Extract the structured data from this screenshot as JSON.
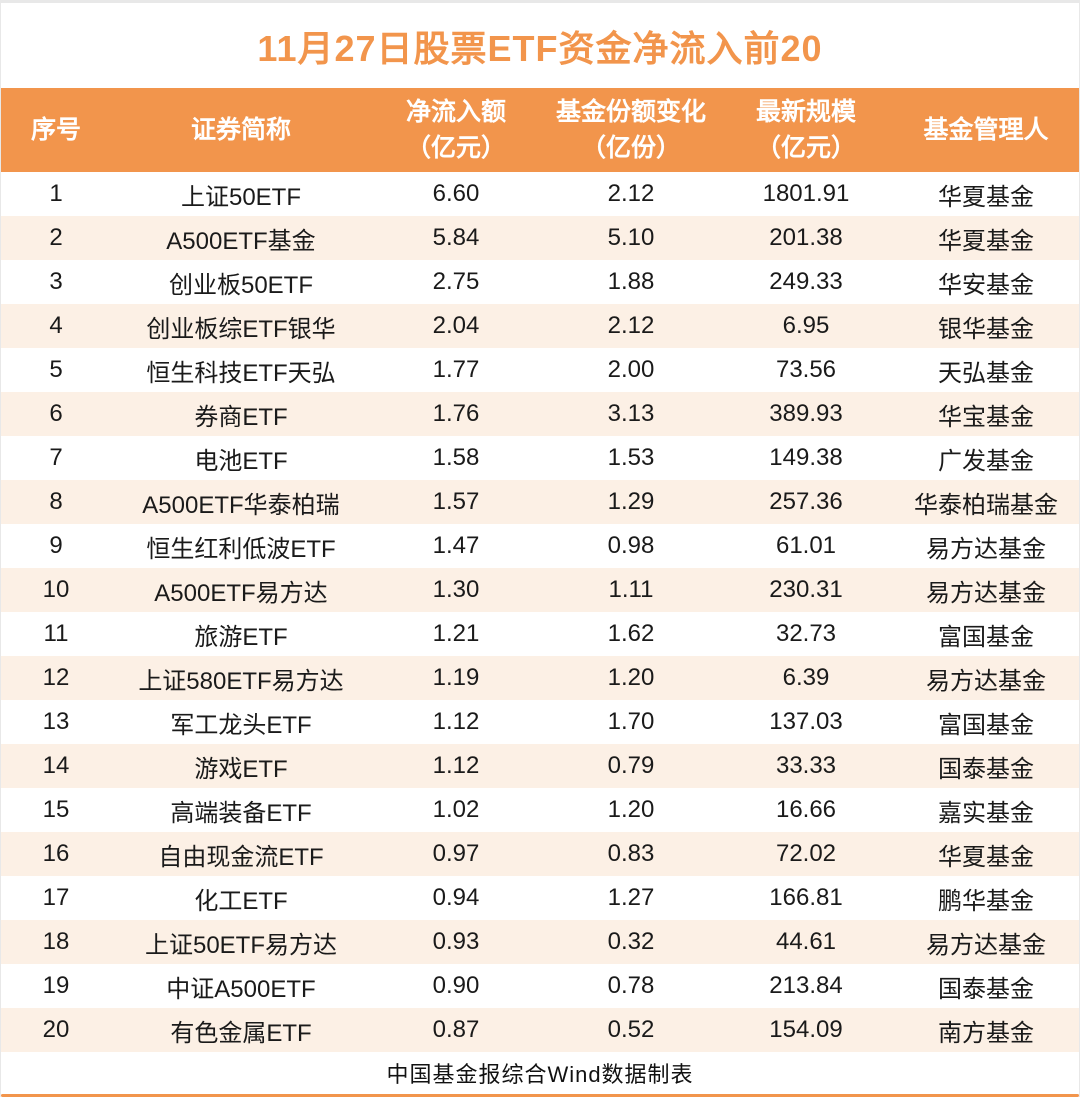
{
  "title": "11月27日股票ETF资金净流入前20",
  "footer_note": "中国基金报综合Wind数据制表",
  "colors": {
    "accent_orange": "#F2954C",
    "row_alt_peach": "#FCF0E5",
    "header_text": "#FFFFFF",
    "body_text": "#1A1A1A",
    "top_hairline": "#E8E8E8"
  },
  "chart_data": {
    "type": "table",
    "title": "11月27日股票ETF资金净流入前20",
    "columns": [
      {
        "label": "序号",
        "unit": ""
      },
      {
        "label": "证券简称",
        "unit": ""
      },
      {
        "label": "净流入额",
        "unit": "（亿元）"
      },
      {
        "label": "基金份额变化",
        "unit": "（亿份）"
      },
      {
        "label": "最新规模",
        "unit": "（亿元）"
      },
      {
        "label": "基金管理人",
        "unit": ""
      }
    ],
    "rows": [
      {
        "rank": "1",
        "name": "上证50ETF",
        "net_inflow": "6.60",
        "share_change": "2.12",
        "scale": "1801.91",
        "manager": "华夏基金"
      },
      {
        "rank": "2",
        "name": "A500ETF基金",
        "net_inflow": "5.84",
        "share_change": "5.10",
        "scale": "201.38",
        "manager": "华夏基金"
      },
      {
        "rank": "3",
        "name": "创业板50ETF",
        "net_inflow": "2.75",
        "share_change": "1.88",
        "scale": "249.33",
        "manager": "华安基金"
      },
      {
        "rank": "4",
        "name": "创业板综ETF银华",
        "net_inflow": "2.04",
        "share_change": "2.12",
        "scale": "6.95",
        "manager": "银华基金"
      },
      {
        "rank": "5",
        "name": "恒生科技ETF天弘",
        "net_inflow": "1.77",
        "share_change": "2.00",
        "scale": "73.56",
        "manager": "天弘基金"
      },
      {
        "rank": "6",
        "name": "券商ETF",
        "net_inflow": "1.76",
        "share_change": "3.13",
        "scale": "389.93",
        "manager": "华宝基金"
      },
      {
        "rank": "7",
        "name": "电池ETF",
        "net_inflow": "1.58",
        "share_change": "1.53",
        "scale": "149.38",
        "manager": "广发基金"
      },
      {
        "rank": "8",
        "name": "A500ETF华泰柏瑞",
        "net_inflow": "1.57",
        "share_change": "1.29",
        "scale": "257.36",
        "manager": "华泰柏瑞基金"
      },
      {
        "rank": "9",
        "name": "恒生红利低波ETF",
        "net_inflow": "1.47",
        "share_change": "0.98",
        "scale": "61.01",
        "manager": "易方达基金"
      },
      {
        "rank": "10",
        "name": "A500ETF易方达",
        "net_inflow": "1.30",
        "share_change": "1.11",
        "scale": "230.31",
        "manager": "易方达基金"
      },
      {
        "rank": "11",
        "name": "旅游ETF",
        "net_inflow": "1.21",
        "share_change": "1.62",
        "scale": "32.73",
        "manager": "富国基金"
      },
      {
        "rank": "12",
        "name": "上证580ETF易方达",
        "net_inflow": "1.19",
        "share_change": "1.20",
        "scale": "6.39",
        "manager": "易方达基金"
      },
      {
        "rank": "13",
        "name": "军工龙头ETF",
        "net_inflow": "1.12",
        "share_change": "1.70",
        "scale": "137.03",
        "manager": "富国基金"
      },
      {
        "rank": "14",
        "name": "游戏ETF",
        "net_inflow": "1.12",
        "share_change": "0.79",
        "scale": "33.33",
        "manager": "国泰基金"
      },
      {
        "rank": "15",
        "name": "高端装备ETF",
        "net_inflow": "1.02",
        "share_change": "1.20",
        "scale": "16.66",
        "manager": "嘉实基金"
      },
      {
        "rank": "16",
        "name": "自由现金流ETF",
        "net_inflow": "0.97",
        "share_change": "0.83",
        "scale": "72.02",
        "manager": "华夏基金"
      },
      {
        "rank": "17",
        "name": "化工ETF",
        "net_inflow": "0.94",
        "share_change": "1.27",
        "scale": "166.81",
        "manager": "鹏华基金"
      },
      {
        "rank": "18",
        "name": "上证50ETF易方达",
        "net_inflow": "0.93",
        "share_change": "0.32",
        "scale": "44.61",
        "manager": "易方达基金"
      },
      {
        "rank": "19",
        "name": "中证A500ETF",
        "net_inflow": "0.90",
        "share_change": "0.78",
        "scale": "213.84",
        "manager": "国泰基金"
      },
      {
        "rank": "20",
        "name": "有色金属ETF",
        "net_inflow": "0.87",
        "share_change": "0.52",
        "scale": "154.09",
        "manager": "南方基金"
      }
    ]
  }
}
